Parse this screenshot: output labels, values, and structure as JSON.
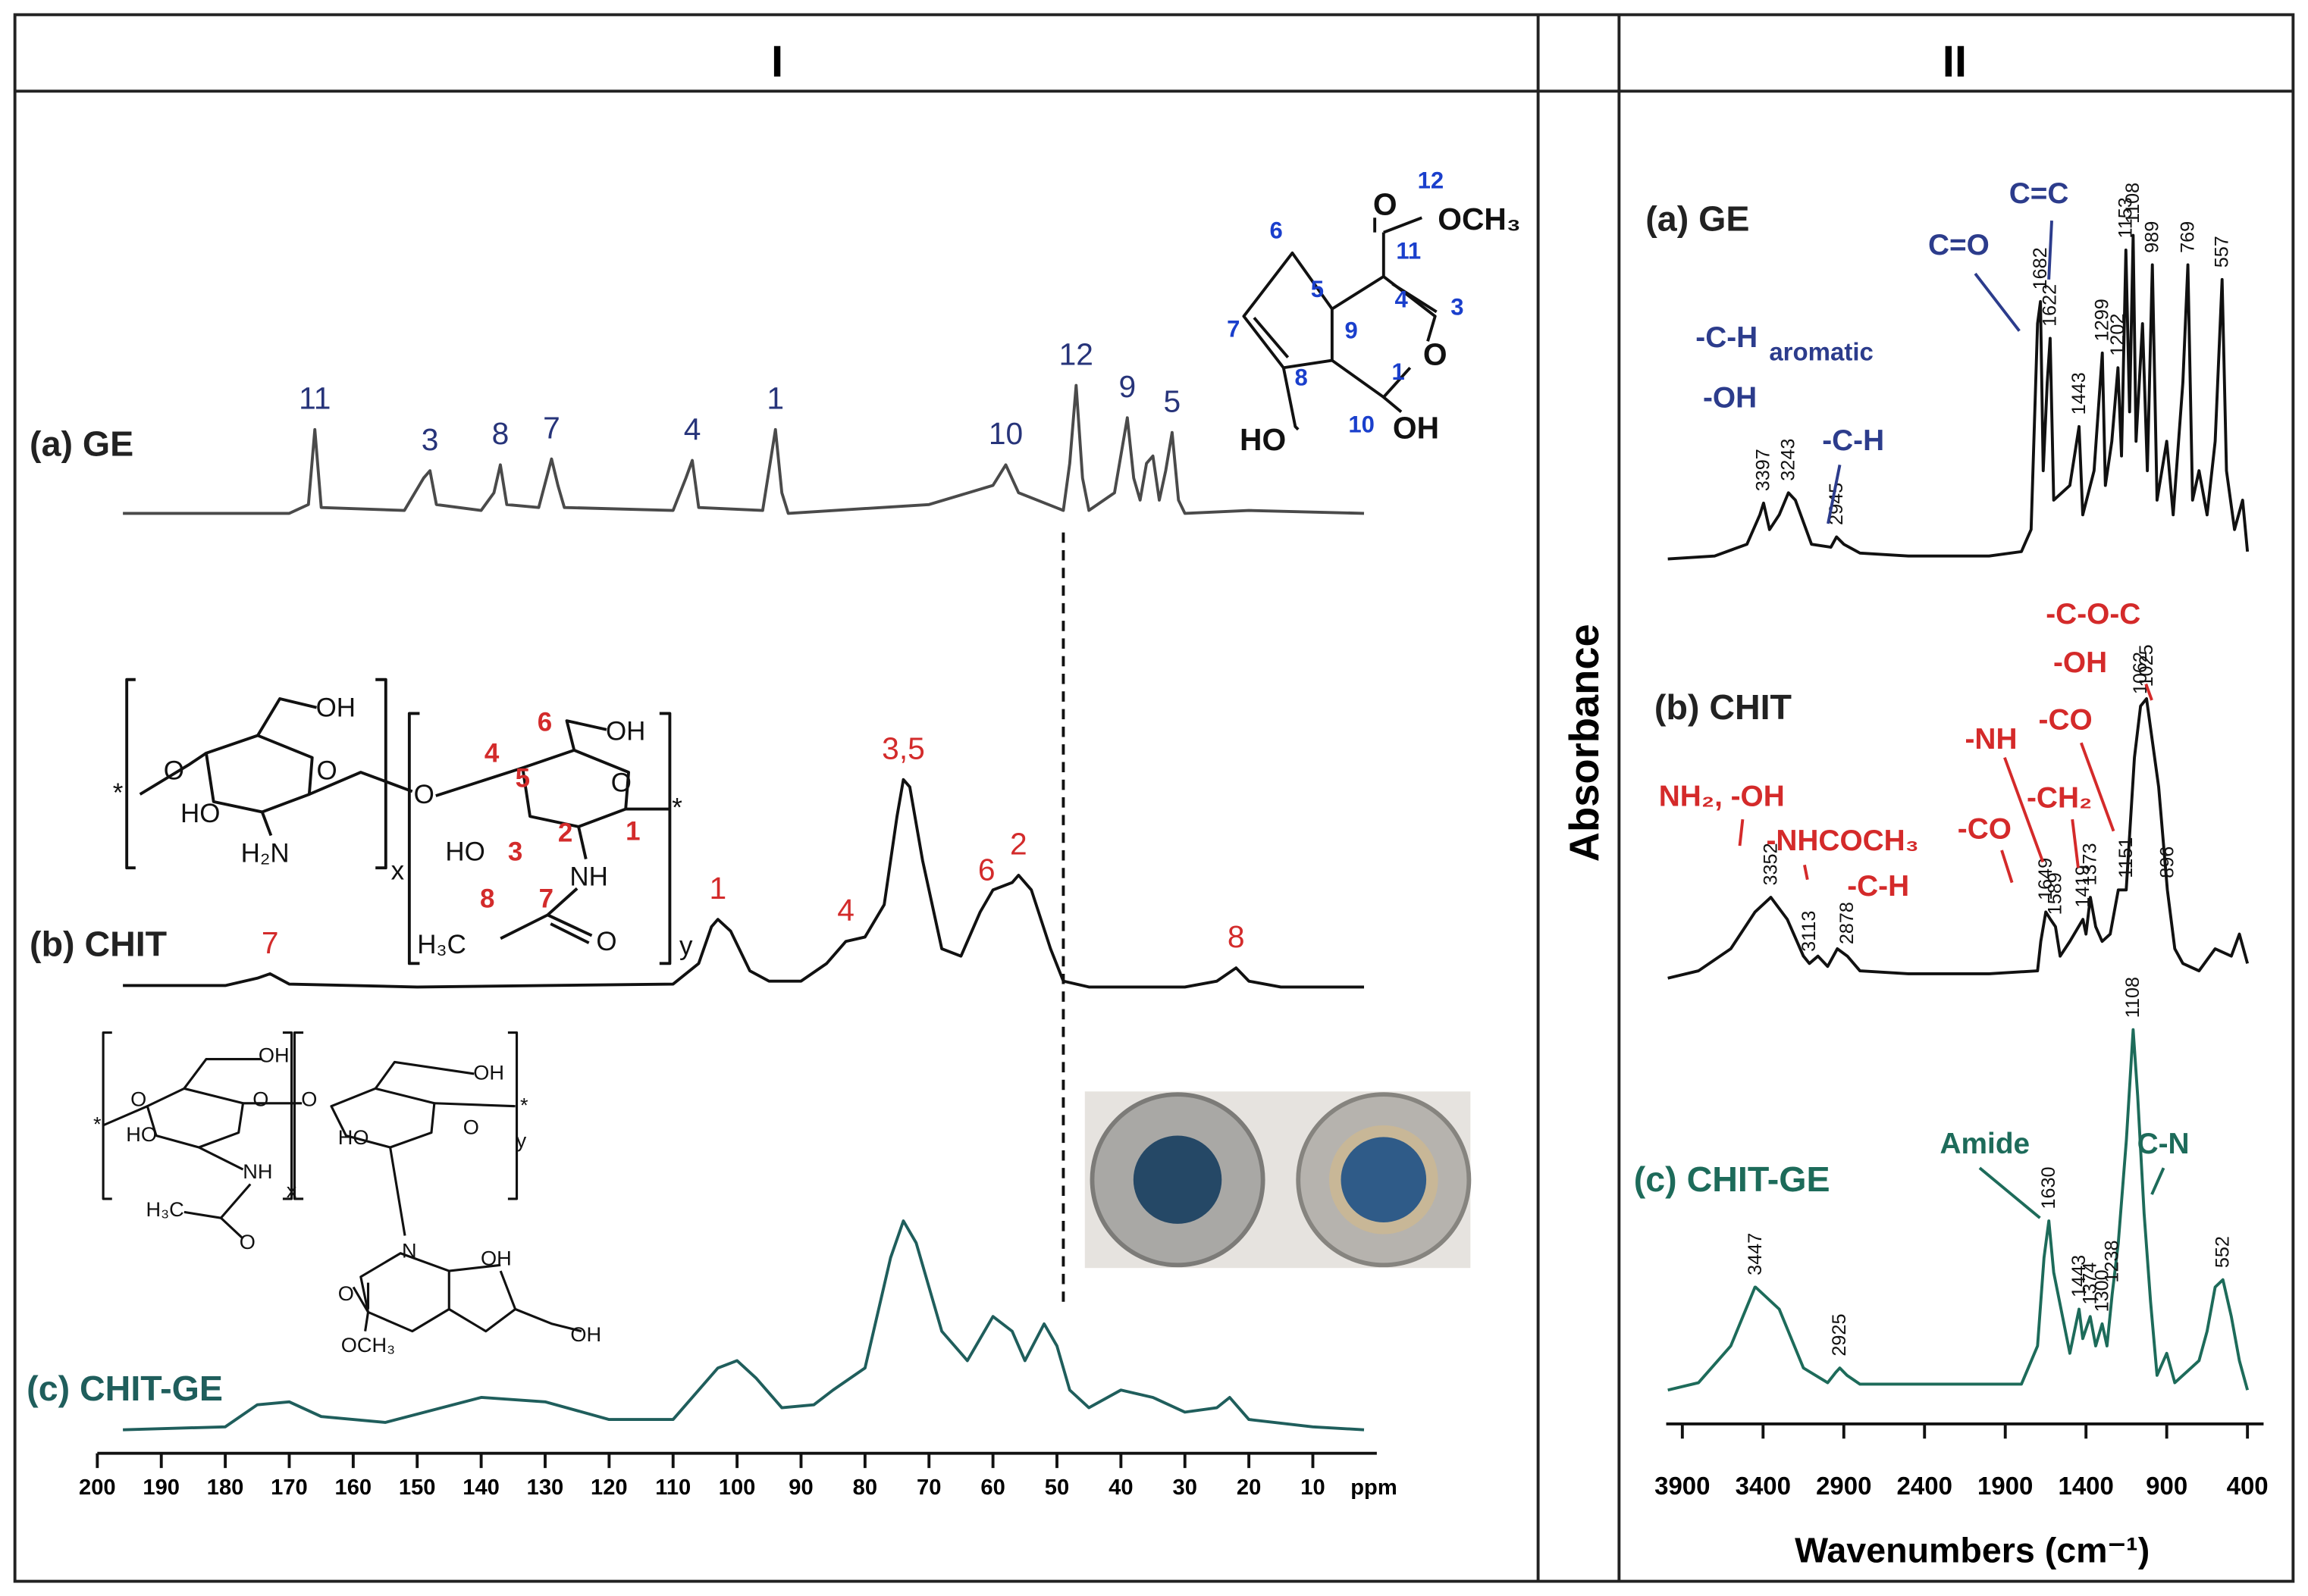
{
  "chart_data": [
    {
      "type": "line",
      "title": "I",
      "x_label": "ppm",
      "xlim": [
        200,
        0
      ],
      "ylim": [
        0,
        150
      ],
      "xticks": [
        200,
        190,
        180,
        170,
        160,
        150,
        140,
        130,
        120,
        110,
        100,
        90,
        80,
        70,
        60,
        50,
        40,
        30,
        20,
        10
      ],
      "reference_lines": [
        49
      ],
      "series": [
        {
          "name": "(a) GE",
          "color": "#4a4a4a",
          "label_color": "#27347a",
          "x": [
            196,
            170,
            167,
            166,
            165,
            152,
            149,
            148,
            147,
            140,
            138,
            137,
            136,
            131,
            129,
            128,
            127,
            110,
            108,
            107,
            106,
            96,
            94,
            93,
            92,
            70,
            60,
            58,
            56,
            49,
            48,
            47,
            46,
            45,
            41,
            39,
            38,
            37,
            36,
            35,
            34,
            33,
            32,
            31,
            30,
            20,
            2
          ],
          "values": [
            6,
            6,
            12,
            63,
            10,
            8,
            30,
            35,
            12,
            8,
            20,
            39,
            12,
            10,
            43,
            25,
            10,
            8,
            30,
            42,
            10,
            8,
            63,
            20,
            6,
            12,
            25,
            39,
            20,
            8,
            40,
            93,
            30,
            8,
            20,
            71,
            30,
            15,
            40,
            45,
            15,
            35,
            61,
            15,
            6,
            8,
            6
          ],
          "peak_labels": [
            {
              "x": 166,
              "label": "11"
            },
            {
              "x": 148,
              "label": "3"
            },
            {
              "x": 137,
              "label": "8"
            },
            {
              "x": 129,
              "label": "7"
            },
            {
              "x": 107,
              "label": "4"
            },
            {
              "x": 94,
              "label": "1"
            },
            {
              "x": 58,
              "label": "10"
            },
            {
              "x": 47,
              "label": "12"
            },
            {
              "x": 39,
              "label": "9"
            },
            {
              "x": 32,
              "label": "5"
            }
          ]
        },
        {
          "name": "(b) CHIT",
          "color": "#111111",
          "label_color": "#d32b2b",
          "x": [
            196,
            180,
            175,
            173,
            170,
            150,
            130,
            110,
            106,
            104,
            103,
            101,
            98,
            95,
            90,
            86,
            83,
            80,
            77,
            75,
            74,
            73,
            71,
            68,
            65,
            62,
            60,
            57,
            56,
            54,
            51,
            49,
            45,
            30,
            25,
            22,
            20,
            15,
            2
          ],
          "values": [
            5,
            5,
            10,
            13,
            6,
            4,
            5,
            6,
            20,
            45,
            50,
            42,
            15,
            8,
            8,
            20,
            35,
            38,
            60,
            120,
            145,
            140,
            90,
            30,
            25,
            55,
            70,
            75,
            80,
            70,
            30,
            8,
            4,
            4,
            8,
            17,
            8,
            4,
            4
          ],
          "peak_labels": [
            {
              "x": 173,
              "label": "7"
            },
            {
              "x": 103,
              "label": "1"
            },
            {
              "x": 83,
              "label": "4"
            },
            {
              "x": 74,
              "label": "3,5"
            },
            {
              "x": 61,
              "label": "6"
            },
            {
              "x": 56,
              "label": "2"
            },
            {
              "x": 22,
              "label": "8"
            }
          ]
        },
        {
          "name": "(c) CHIT-GE",
          "color": "#1f5e5c",
          "label_color": "#1f5e5c",
          "x": [
            196,
            180,
            175,
            170,
            165,
            155,
            140,
            130,
            120,
            110,
            103,
            100,
            97,
            93,
            88,
            85,
            80,
            76,
            74,
            72,
            68,
            64,
            60,
            57,
            55,
            52,
            50,
            48,
            45,
            40,
            35,
            30,
            25,
            23,
            20,
            10,
            2
          ],
          "values": [
            3,
            5,
            20,
            22,
            12,
            8,
            25,
            22,
            10,
            10,
            45,
            50,
            38,
            18,
            20,
            30,
            45,
            120,
            145,
            130,
            70,
            50,
            80,
            70,
            50,
            75,
            60,
            30,
            18,
            30,
            25,
            15,
            18,
            25,
            10,
            5,
            3
          ],
          "peak_labels": []
        }
      ],
      "structures": [
        {
          "color": "#1a3fcc",
          "labels": [
            "O",
            "OCH₃",
            "12",
            "11",
            "4",
            "3",
            "5",
            "6",
            "7",
            "8",
            "9",
            "1",
            "10",
            "O",
            "HO",
            "OH"
          ]
        },
        {
          "color": "#d32b2b",
          "labels": [
            "OH",
            "O",
            "O",
            "HO",
            "H₂N",
            "x",
            "O",
            "4",
            "6",
            "OH",
            "5",
            "O",
            "1",
            "HO",
            "3",
            "2",
            "NH",
            "8",
            "7",
            "H₃C",
            "O",
            "y",
            "*",
            "*"
          ]
        },
        {
          "color": "#111111",
          "labels": [
            "OH",
            "O",
            "O",
            "HO",
            "NH",
            "x",
            "H₃C",
            "O",
            "OH",
            "O",
            "O",
            "HO",
            "y",
            "N",
            "OH",
            "O",
            "OCH₃",
            "OH",
            "*",
            "*"
          ]
        }
      ]
    },
    {
      "type": "line",
      "title": "II",
      "x_label": "Wavenumbers (cm⁻¹)",
      "y_label": "Absorbance",
      "xlim": [
        4000,
        300
      ],
      "ylim": [
        0,
        250
      ],
      "xticks": [
        3900,
        3400,
        2900,
        2400,
        1900,
        1400,
        900,
        400
      ],
      "series": [
        {
          "name": "(a) GE",
          "color": "#111111",
          "annotation_color": "#2c3c8c",
          "x": [
            3990,
            3700,
            3500,
            3420,
            3397,
            3360,
            3300,
            3243,
            3200,
            3100,
            2980,
            2945,
            2900,
            2800,
            2500,
            2000,
            1800,
            1740,
            1700,
            1682,
            1665,
            1640,
            1622,
            1600,
            1500,
            1443,
            1420,
            1350,
            1299,
            1280,
            1240,
            1202,
            1180,
            1153,
            1130,
            1108,
            1090,
            1050,
            1020,
            989,
            960,
            900,
            860,
            800,
            769,
            740,
            700,
            650,
            600,
            557,
            530,
            480,
            430,
            400
          ],
          "values": [
            0,
            2,
            10,
            30,
            38,
            20,
            30,
            45,
            40,
            10,
            8,
            15,
            10,
            4,
            2,
            2,
            5,
            20,
            160,
            175,
            60,
            120,
            150,
            40,
            50,
            90,
            30,
            60,
            140,
            50,
            80,
            130,
            70,
            210,
            100,
            220,
            80,
            160,
            60,
            200,
            40,
            80,
            30,
            120,
            200,
            40,
            60,
            30,
            80,
            190,
            60,
            20,
            40,
            5
          ],
          "peaks": [
            3397,
            3243,
            2945,
            1682,
            1622,
            1443,
            1299,
            1202,
            1153,
            1108,
            989,
            769,
            557
          ],
          "annotations": [
            "-C-H",
            "aromatic",
            "-OH",
            "-C-H",
            "C=O",
            "C=C"
          ]
        },
        {
          "name": "(b) CHIT",
          "color": "#111111",
          "annotation_color": "#d42a2a",
          "x": [
            3990,
            3800,
            3600,
            3450,
            3352,
            3250,
            3150,
            3113,
            3060,
            3000,
            2940,
            2878,
            2800,
            2500,
            2000,
            1700,
            1680,
            1649,
            1620,
            1589,
            1560,
            1500,
            1419,
            1400,
            1373,
            1340,
            1300,
            1250,
            1200,
            1151,
            1100,
            1062,
            1025,
            1000,
            950,
            896,
            850,
            800,
            700,
            600,
            500,
            450,
            400
          ],
          "values": [
            0,
            5,
            20,
            45,
            55,
            40,
            15,
            10,
            15,
            8,
            20,
            15,
            5,
            3,
            3,
            5,
            25,
            45,
            40,
            35,
            15,
            25,
            40,
            30,
            55,
            35,
            25,
            30,
            60,
            60,
            150,
            185,
            190,
            170,
            130,
            60,
            20,
            10,
            5,
            20,
            15,
            30,
            10
          ],
          "peaks": [
            3352,
            3113,
            2878,
            1649,
            1589,
            1419,
            1373,
            1151,
            1062,
            1025,
            896
          ],
          "annotations": [
            "NH₂, -OH",
            "-NHCOCH₃",
            "-C-H",
            "-CO",
            "-NH",
            "-CH₂",
            "-CO",
            "-C-O-C",
            "-OH"
          ]
        },
        {
          "name": "(c) CHIT-GE",
          "color": "#1d6b5a",
          "annotation_color": "#1d6b5a",
          "x": [
            3990,
            3800,
            3600,
            3450,
            3447,
            3300,
            3150,
            3000,
            2950,
            2925,
            2880,
            2800,
            2200,
            1800,
            1700,
            1660,
            1630,
            1600,
            1500,
            1443,
            1420,
            1374,
            1340,
            1300,
            1270,
            1238,
            1200,
            1150,
            1108,
            1080,
            1040,
            1000,
            960,
            900,
            850,
            750,
            700,
            650,
            600,
            552,
            500,
            450,
            400
          ],
          "values": [
            0,
            5,
            30,
            70,
            70,
            55,
            15,
            5,
            12,
            15,
            10,
            4,
            4,
            4,
            30,
            90,
            115,
            80,
            25,
            55,
            35,
            50,
            30,
            45,
            30,
            65,
            100,
            170,
            245,
            200,
            120,
            60,
            10,
            25,
            5,
            15,
            20,
            40,
            70,
            75,
            50,
            20,
            0
          ],
          "peaks": [
            3447,
            2925,
            1630,
            1443,
            1374,
            1300,
            1238,
            1108,
            552
          ],
          "annotations": [
            "Amide",
            "C-N"
          ]
        }
      ]
    }
  ]
}
